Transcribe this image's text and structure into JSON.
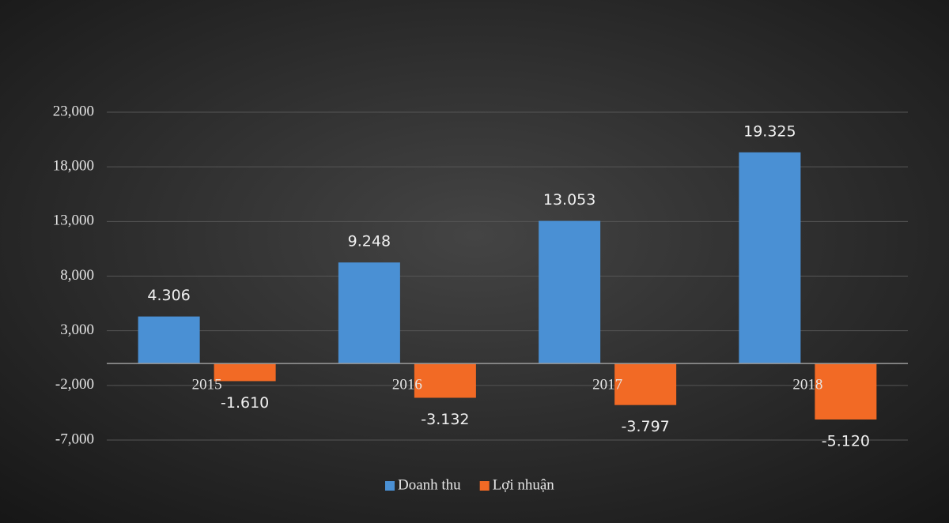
{
  "chart_data": {
    "type": "bar",
    "categories": [
      "2015",
      "2016",
      "2017",
      "2018"
    ],
    "series": [
      {
        "name": "Doanh thu",
        "color": "#4a90d4",
        "values": [
          4306,
          9248,
          13053,
          19325
        ],
        "value_labels": [
          "4.306",
          "9.248",
          "13.053",
          "19.325"
        ]
      },
      {
        "name": "Lợi nhuận",
        "color": "#f26a25",
        "values": [
          -1610,
          -3132,
          -3797,
          -5120
        ],
        "value_labels": [
          "-1.610",
          "-3.132",
          "-3.797",
          "-5.120"
        ]
      }
    ],
    "ylim": [
      -7000,
      23000
    ],
    "yticks": [
      {
        "value": -7000,
        "label": "-7,000"
      },
      {
        "value": -2000,
        "label": "-2,000"
      },
      {
        "value": 3000,
        "label": "3,000"
      },
      {
        "value": 8000,
        "label": "8,000"
      },
      {
        "value": 13000,
        "label": "13,000"
      },
      {
        "value": 18000,
        "label": "18,000"
      },
      {
        "value": 23000,
        "label": "23,000"
      }
    ],
    "grid": true,
    "legend": "bottom"
  }
}
